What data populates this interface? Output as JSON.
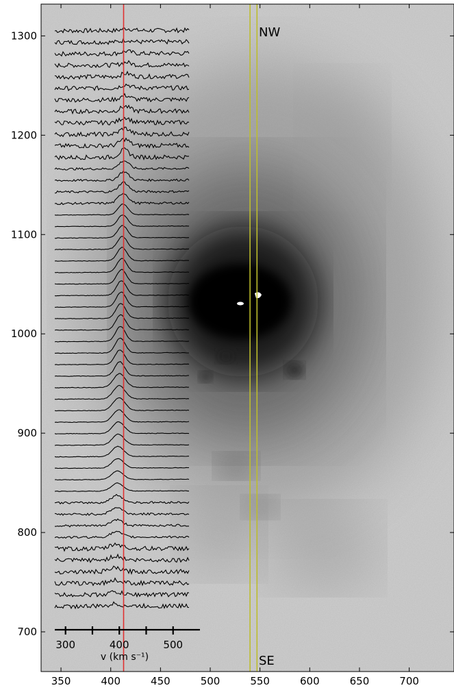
{
  "chart_data": {
    "type": "image",
    "xlim": [
      330,
      745
    ],
    "ylim": [
      660,
      1332
    ],
    "x_ticks": [
      350,
      400,
      450,
      500,
      550,
      600,
      650,
      700
    ],
    "x_tick_labels": [
      "350",
      "400",
      "450",
      "500",
      "550",
      "600",
      "650",
      "700"
    ],
    "y_ticks": [
      700,
      800,
      900,
      1000,
      1100,
      1200,
      1300
    ],
    "y_tick_labels": [
      "700",
      "800",
      "900",
      "1000",
      "1100",
      "1200",
      "1300"
    ],
    "annotations": {
      "top": "NW",
      "bottom": "SE"
    },
    "slit_lines_x": [
      540,
      547
    ],
    "slit_line_color": "#bdbd2c",
    "velocity_marker": {
      "value_kms": 408,
      "color": "#e03030"
    },
    "velocity_axis": {
      "label": "v (km s⁻¹)",
      "range": [
        280,
        550
      ],
      "ticks": [
        300,
        350,
        400,
        450,
        500
      ],
      "tick_labels": [
        "300",
        "400",
        "500"
      ],
      "labeled_ticks": [
        300,
        400,
        500
      ]
    },
    "spectra": {
      "count": 51,
      "peak_velocity_kms": 403,
      "vmin": 280,
      "vmax": 530
    },
    "colormap": "gray_r"
  }
}
